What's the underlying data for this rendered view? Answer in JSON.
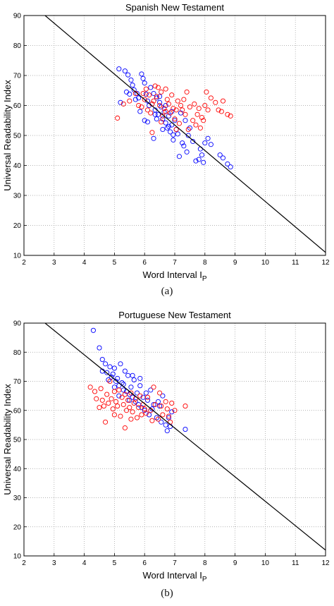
{
  "chart_data": [
    {
      "type": "scatter",
      "title": "Spanish New Testament",
      "xlabel": "Word Interval",
      "xlabel_subscript": "P",
      "xlabel_symbol": "I",
      "ylabel": "Universal Readability Index",
      "xlim": [
        2,
        12
      ],
      "ylim": [
        10,
        90
      ],
      "xticks": [
        2,
        3,
        4,
        5,
        6,
        7,
        8,
        9,
        10,
        11,
        12
      ],
      "yticks": [
        10,
        20,
        30,
        40,
        50,
        60,
        70,
        80,
        90
      ],
      "grid": true,
      "caption": "(a)",
      "fit_line": {
        "color": "#000000",
        "points": [
          [
            2.7,
            90
          ],
          [
            12,
            11
          ]
        ]
      },
      "series": [
        {
          "color": "#0000ff",
          "points": [
            [
              5.15,
              72.2
            ],
            [
              5.35,
              71.5
            ],
            [
              5.45,
              70.2
            ],
            [
              5.55,
              68.5
            ],
            [
              5.6,
              66.8
            ],
            [
              5.4,
              64.5
            ],
            [
              5.5,
              63.8
            ],
            [
              5.65,
              65.2
            ],
            [
              5.75,
              64.0
            ],
            [
              5.8,
              62.5
            ],
            [
              5.9,
              70.5
            ],
            [
              5.95,
              69.0
            ],
            [
              6.0,
              67.5
            ],
            [
              6.05,
              63.8
            ],
            [
              6.1,
              61.5
            ],
            [
              6.2,
              66.0
            ],
            [
              6.25,
              60.5
            ],
            [
              6.3,
              64.0
            ],
            [
              6.35,
              58.5
            ],
            [
              6.4,
              62.5
            ],
            [
              6.45,
              57.0
            ],
            [
              6.5,
              61.0
            ],
            [
              6.55,
              59.5
            ],
            [
              6.6,
              55.5
            ],
            [
              6.65,
              57.8
            ],
            [
              6.7,
              54.2
            ],
            [
              6.75,
              52.5
            ],
            [
              6.8,
              56.5
            ],
            [
              6.85,
              51.2
            ],
            [
              6.9,
              53.5
            ],
            [
              6.95,
              50.2
            ],
            [
              7.0,
              55.0
            ],
            [
              7.05,
              52.0
            ],
            [
              7.1,
              50.5
            ],
            [
              7.2,
              57.5
            ],
            [
              7.25,
              47.5
            ],
            [
              7.3,
              46.5
            ],
            [
              7.4,
              44.5
            ],
            [
              7.5,
              52.5
            ],
            [
              7.6,
              48.0
            ],
            [
              7.7,
              41.5
            ],
            [
              7.8,
              42.0
            ],
            [
              7.85,
              45.5
            ],
            [
              7.9,
              43.5
            ],
            [
              7.95,
              41.0
            ],
            [
              8.0,
              47.5
            ],
            [
              8.1,
              49.0
            ],
            [
              8.2,
              47.0
            ],
            [
              8.5,
              43.5
            ],
            [
              8.6,
              42.5
            ],
            [
              8.75,
              40.5
            ],
            [
              8.85,
              39.5
            ],
            [
              6.3,
              49.0
            ],
            [
              6.1,
              54.5
            ],
            [
              5.85,
              58.0
            ],
            [
              6.0,
              55.0
            ],
            [
              6.5,
              63.0
            ],
            [
              6.7,
              60.0
            ],
            [
              5.2,
              61.0
            ],
            [
              6.15,
              60.0
            ],
            [
              6.35,
              57.0
            ],
            [
              6.8,
              53.0
            ],
            [
              7.35,
              55.0
            ],
            [
              7.15,
              43.0
            ],
            [
              6.95,
              48.5
            ],
            [
              6.6,
              52.0
            ],
            [
              5.7,
              62.0
            ],
            [
              6.4,
              55.5
            ],
            [
              6.9,
              58.0
            ],
            [
              7.45,
              50.0
            ]
          ]
        },
        {
          "color": "#ff0000",
          "points": [
            [
              5.1,
              55.8
            ],
            [
              5.3,
              60.5
            ],
            [
              5.5,
              61.5
            ],
            [
              5.7,
              64.0
            ],
            [
              5.8,
              60.0
            ],
            [
              5.9,
              59.5
            ],
            [
              6.0,
              62.0
            ],
            [
              6.05,
              65.5
            ],
            [
              6.1,
              58.5
            ],
            [
              6.2,
              57.5
            ],
            [
              6.25,
              60.5
            ],
            [
              6.3,
              61.5
            ],
            [
              6.35,
              66.5
            ],
            [
              6.4,
              63.0
            ],
            [
              6.5,
              60.0
            ],
            [
              6.55,
              64.5
            ],
            [
              6.6,
              56.5
            ],
            [
              6.65,
              59.0
            ],
            [
              6.7,
              58.0
            ],
            [
              6.75,
              62.0
            ],
            [
              6.8,
              60.5
            ],
            [
              6.85,
              57.5
            ],
            [
              6.9,
              63.5
            ],
            [
              6.95,
              59.0
            ],
            [
              7.0,
              55.5
            ],
            [
              7.05,
              58.5
            ],
            [
              7.1,
              61.5
            ],
            [
              7.15,
              54.0
            ],
            [
              7.2,
              60.0
            ],
            [
              7.3,
              62.0
            ],
            [
              7.35,
              57.0
            ],
            [
              7.4,
              64.5
            ],
            [
              7.45,
              52.0
            ],
            [
              7.5,
              59.5
            ],
            [
              7.6,
              55.0
            ],
            [
              7.65,
              60.5
            ],
            [
              7.7,
              53.5
            ],
            [
              7.75,
              57.0
            ],
            [
              7.8,
              59.0
            ],
            [
              7.85,
              52.5
            ],
            [
              7.9,
              56.0
            ],
            [
              7.95,
              55.0
            ],
            [
              8.0,
              60.0
            ],
            [
              8.05,
              64.5
            ],
            [
              8.1,
              58.5
            ],
            [
              8.2,
              62.5
            ],
            [
              8.35,
              61.0
            ],
            [
              8.45,
              58.5
            ],
            [
              8.55,
              58.0
            ],
            [
              8.6,
              61.5
            ],
            [
              8.75,
              57.0
            ],
            [
              8.85,
              56.5
            ],
            [
              6.15,
              63.5
            ],
            [
              6.45,
              66.0
            ],
            [
              5.95,
              64.0
            ],
            [
              6.7,
              65.5
            ],
            [
              7.25,
              58.5
            ],
            [
              6.25,
              51.0
            ],
            [
              6.55,
              54.5
            ],
            [
              7.05,
              52.0
            ]
          ]
        }
      ]
    },
    {
      "type": "scatter",
      "title": "Portuguese New Testament",
      "xlabel": "Word Interval",
      "xlabel_subscript": "P",
      "xlabel_symbol": "I",
      "ylabel": "Universal Readability Index",
      "xlim": [
        2,
        12
      ],
      "ylim": [
        10,
        90
      ],
      "xticks": [
        2,
        3,
        4,
        5,
        6,
        7,
        8,
        9,
        10,
        11,
        12
      ],
      "yticks": [
        10,
        20,
        30,
        40,
        50,
        60,
        70,
        80,
        90
      ],
      "grid": true,
      "caption": "(b)",
      "fit_line": {
        "color": "#000000",
        "points": [
          [
            2.7,
            90
          ],
          [
            12,
            12
          ]
        ]
      },
      "series": [
        {
          "color": "#0000ff",
          "points": [
            [
              4.3,
              87.5
            ],
            [
              4.5,
              81.5
            ],
            [
              4.6,
              77.5
            ],
            [
              4.7,
              76.0
            ],
            [
              4.75,
              73.0
            ],
            [
              4.85,
              75.0
            ],
            [
              4.9,
              71.5
            ],
            [
              4.95,
              72.5
            ],
            [
              5.0,
              74.5
            ],
            [
              5.05,
              70.0
            ],
            [
              5.1,
              71.0
            ],
            [
              5.15,
              68.5
            ],
            [
              5.2,
              76.0
            ],
            [
              5.25,
              69.5
            ],
            [
              5.3,
              67.0
            ],
            [
              5.35,
              73.5
            ],
            [
              5.4,
              66.5
            ],
            [
              5.45,
              72.0
            ],
            [
              5.5,
              65.5
            ],
            [
              5.55,
              68.0
            ],
            [
              5.6,
              64.5
            ],
            [
              5.65,
              70.5
            ],
            [
              5.7,
              63.0
            ],
            [
              5.75,
              66.0
            ],
            [
              5.8,
              62.0
            ],
            [
              5.85,
              68.5
            ],
            [
              5.9,
              61.0
            ],
            [
              5.95,
              64.5
            ],
            [
              6.0,
              60.0
            ],
            [
              6.1,
              63.5
            ],
            [
              6.15,
              58.5
            ],
            [
              6.2,
              67.0
            ],
            [
              6.3,
              62.0
            ],
            [
              6.4,
              57.5
            ],
            [
              6.5,
              61.5
            ],
            [
              6.55,
              56.0
            ],
            [
              6.6,
              65.0
            ],
            [
              6.7,
              55.0
            ],
            [
              6.8,
              57.5
            ],
            [
              6.85,
              54.5
            ],
            [
              6.9,
              59.5
            ],
            [
              7.35,
              53.5
            ],
            [
              4.8,
              70.5
            ],
            [
              5.0,
              68.0
            ],
            [
              5.3,
              69.0
            ],
            [
              5.6,
              72.0
            ],
            [
              5.85,
              71.0
            ],
            [
              6.05,
              66.0
            ],
            [
              6.25,
              60.5
            ],
            [
              6.45,
              63.0
            ],
            [
              4.6,
              73.5
            ],
            [
              5.15,
              65.0
            ],
            [
              5.5,
              63.5
            ],
            [
              6.75,
              53.0
            ]
          ]
        },
        {
          "color": "#ff0000",
          "points": [
            [
              4.2,
              68.0
            ],
            [
              4.35,
              66.5
            ],
            [
              4.4,
              64.0
            ],
            [
              4.5,
              61.0
            ],
            [
              4.55,
              67.5
            ],
            [
              4.6,
              63.5
            ],
            [
              4.7,
              56.0
            ],
            [
              4.75,
              65.5
            ],
            [
              4.8,
              62.5
            ],
            [
              4.85,
              70.0
            ],
            [
              4.9,
              64.0
            ],
            [
              4.95,
              60.5
            ],
            [
              5.0,
              66.5
            ],
            [
              5.05,
              63.0
            ],
            [
              5.1,
              61.5
            ],
            [
              5.15,
              67.0
            ],
            [
              5.2,
              58.0
            ],
            [
              5.25,
              64.5
            ],
            [
              5.3,
              62.0
            ],
            [
              5.35,
              65.5
            ],
            [
              5.4,
              60.0
            ],
            [
              5.45,
              63.5
            ],
            [
              5.5,
              61.0
            ],
            [
              5.55,
              66.0
            ],
            [
              5.6,
              59.5
            ],
            [
              5.65,
              62.5
            ],
            [
              5.7,
              64.0
            ],
            [
              5.75,
              57.5
            ],
            [
              5.8,
              61.0
            ],
            [
              5.85,
              65.0
            ],
            [
              5.9,
              58.5
            ],
            [
              5.95,
              62.0
            ],
            [
              6.0,
              60.5
            ],
            [
              6.05,
              59.0
            ],
            [
              6.1,
              64.5
            ],
            [
              6.2,
              60.0
            ],
            [
              6.3,
              68.0
            ],
            [
              6.35,
              62.0
            ],
            [
              6.45,
              57.0
            ],
            [
              6.5,
              66.0
            ],
            [
              6.55,
              61.5
            ],
            [
              6.6,
              58.5
            ],
            [
              6.7,
              63.0
            ],
            [
              6.75,
              60.5
            ],
            [
              6.8,
              58.0
            ],
            [
              6.9,
              62.5
            ],
            [
              7.0,
              60.0
            ],
            [
              7.35,
              61.5
            ],
            [
              5.35,
              54.0
            ],
            [
              5.0,
              58.5
            ],
            [
              6.25,
              56.5
            ],
            [
              4.65,
              61.5
            ],
            [
              5.55,
              57.0
            ],
            [
              6.85,
              56.0
            ]
          ]
        }
      ]
    }
  ]
}
